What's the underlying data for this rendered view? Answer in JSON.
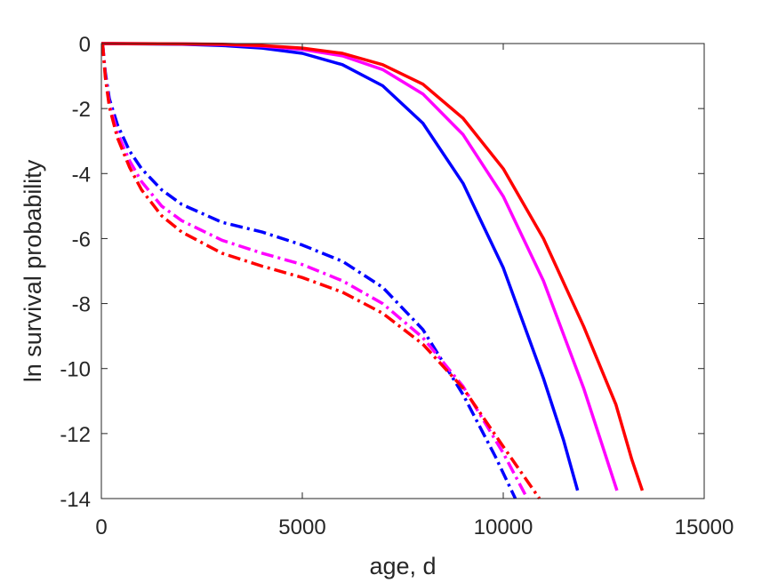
{
  "chart_data": {
    "type": "line",
    "title": "",
    "xlabel": "age, d",
    "ylabel": "ln survival probability",
    "xlim": [
      0,
      15000
    ],
    "ylim": [
      -14,
      0
    ],
    "xticks": [
      0,
      5000,
      10000,
      15000
    ],
    "yticks": [
      0,
      -2,
      -4,
      -6,
      -8,
      -10,
      -12,
      -14
    ],
    "xtick_labels": [
      "0",
      "5000",
      "10000",
      "15000"
    ],
    "ytick_labels": [
      "0",
      "-2",
      "-4",
      "-6",
      "-8",
      "-10",
      "-12",
      "-14"
    ],
    "grid": false,
    "legend": "none",
    "series": [
      {
        "color": "#0000ff",
        "style": "solid",
        "points": [
          [
            0,
            0
          ],
          [
            2000,
            -0.02
          ],
          [
            3000,
            -0.06
          ],
          [
            4000,
            -0.14
          ],
          [
            5000,
            -0.3
          ],
          [
            6000,
            -0.65
          ],
          [
            7000,
            -1.3
          ],
          [
            8000,
            -2.45
          ],
          [
            9000,
            -4.3
          ],
          [
            10000,
            -6.9
          ],
          [
            11000,
            -10.3
          ],
          [
            11500,
            -12.2
          ],
          [
            11850,
            -13.75
          ]
        ]
      },
      {
        "color": "#ff00ff",
        "style": "solid",
        "points": [
          [
            0,
            0
          ],
          [
            2000,
            -0.01
          ],
          [
            3000,
            -0.03
          ],
          [
            4000,
            -0.08
          ],
          [
            5000,
            -0.18
          ],
          [
            6000,
            -0.38
          ],
          [
            7000,
            -0.8
          ],
          [
            8000,
            -1.55
          ],
          [
            9000,
            -2.8
          ],
          [
            10000,
            -4.7
          ],
          [
            11000,
            -7.3
          ],
          [
            12000,
            -10.6
          ],
          [
            12500,
            -12.5
          ],
          [
            12830,
            -13.75
          ]
        ]
      },
      {
        "color": "#ff0000",
        "style": "solid",
        "points": [
          [
            0,
            0
          ],
          [
            2000,
            -0.01
          ],
          [
            3000,
            -0.02
          ],
          [
            4000,
            -0.06
          ],
          [
            5000,
            -0.14
          ],
          [
            6000,
            -0.3
          ],
          [
            7000,
            -0.65
          ],
          [
            8000,
            -1.25
          ],
          [
            9000,
            -2.3
          ],
          [
            10000,
            -3.85
          ],
          [
            11000,
            -6.0
          ],
          [
            12000,
            -8.7
          ],
          [
            12800,
            -11.1
          ],
          [
            13200,
            -12.8
          ],
          [
            13460,
            -13.75
          ]
        ]
      },
      {
        "color": "#0000ff",
        "style": "dashdot",
        "points": [
          [
            30,
            0
          ],
          [
            100,
            -0.9
          ],
          [
            200,
            -1.7
          ],
          [
            400,
            -2.5
          ],
          [
            700,
            -3.3
          ],
          [
            1000,
            -3.85
          ],
          [
            1500,
            -4.5
          ],
          [
            2000,
            -4.95
          ],
          [
            3000,
            -5.5
          ],
          [
            4000,
            -5.8
          ],
          [
            5000,
            -6.2
          ],
          [
            6000,
            -6.7
          ],
          [
            7000,
            -7.5
          ],
          [
            8000,
            -8.8
          ],
          [
            9000,
            -10.8
          ],
          [
            9800,
            -12.7
          ],
          [
            10300,
            -14.0
          ]
        ]
      },
      {
        "color": "#ff00ff",
        "style": "dashdot",
        "points": [
          [
            30,
            0
          ],
          [
            100,
            -1.0
          ],
          [
            200,
            -1.85
          ],
          [
            400,
            -2.75
          ],
          [
            700,
            -3.6
          ],
          [
            1000,
            -4.25
          ],
          [
            1500,
            -5.0
          ],
          [
            2000,
            -5.45
          ],
          [
            3000,
            -6.05
          ],
          [
            4000,
            -6.45
          ],
          [
            5000,
            -6.8
          ],
          [
            6000,
            -7.3
          ],
          [
            7000,
            -8.0
          ],
          [
            8000,
            -9.05
          ],
          [
            9000,
            -10.55
          ],
          [
            10000,
            -12.6
          ],
          [
            10600,
            -14.0
          ]
        ]
      },
      {
        "color": "#ff0000",
        "style": "dashdot",
        "points": [
          [
            30,
            0
          ],
          [
            100,
            -1.05
          ],
          [
            200,
            -1.95
          ],
          [
            400,
            -2.9
          ],
          [
            700,
            -3.8
          ],
          [
            1000,
            -4.5
          ],
          [
            1500,
            -5.3
          ],
          [
            2000,
            -5.8
          ],
          [
            3000,
            -6.45
          ],
          [
            4000,
            -6.85
          ],
          [
            5000,
            -7.2
          ],
          [
            6000,
            -7.65
          ],
          [
            7000,
            -8.3
          ],
          [
            8000,
            -9.25
          ],
          [
            9000,
            -10.6
          ],
          [
            10000,
            -12.4
          ],
          [
            10900,
            -14.0
          ]
        ]
      }
    ]
  }
}
